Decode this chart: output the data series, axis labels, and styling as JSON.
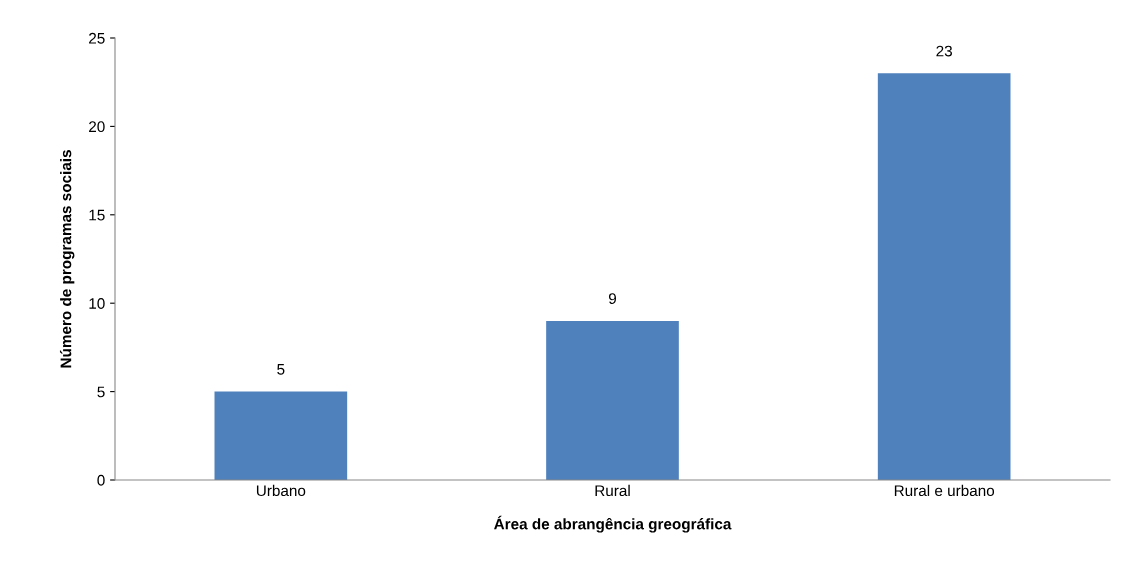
{
  "chart_data": {
    "type": "bar",
    "xlabel": "Área de abrangência greográfica",
    "ylabel": "Número de programas sociais",
    "categories": [
      "Urbano",
      "Rural",
      "Rural e urbano"
    ],
    "values": [
      5,
      9,
      23
    ],
    "color": "#4f81bd",
    "ylim": [
      0,
      25
    ],
    "yticks": [
      0,
      5,
      10,
      15,
      20,
      25
    ],
    "grid": false,
    "data_labels": true,
    "legend": false
  }
}
